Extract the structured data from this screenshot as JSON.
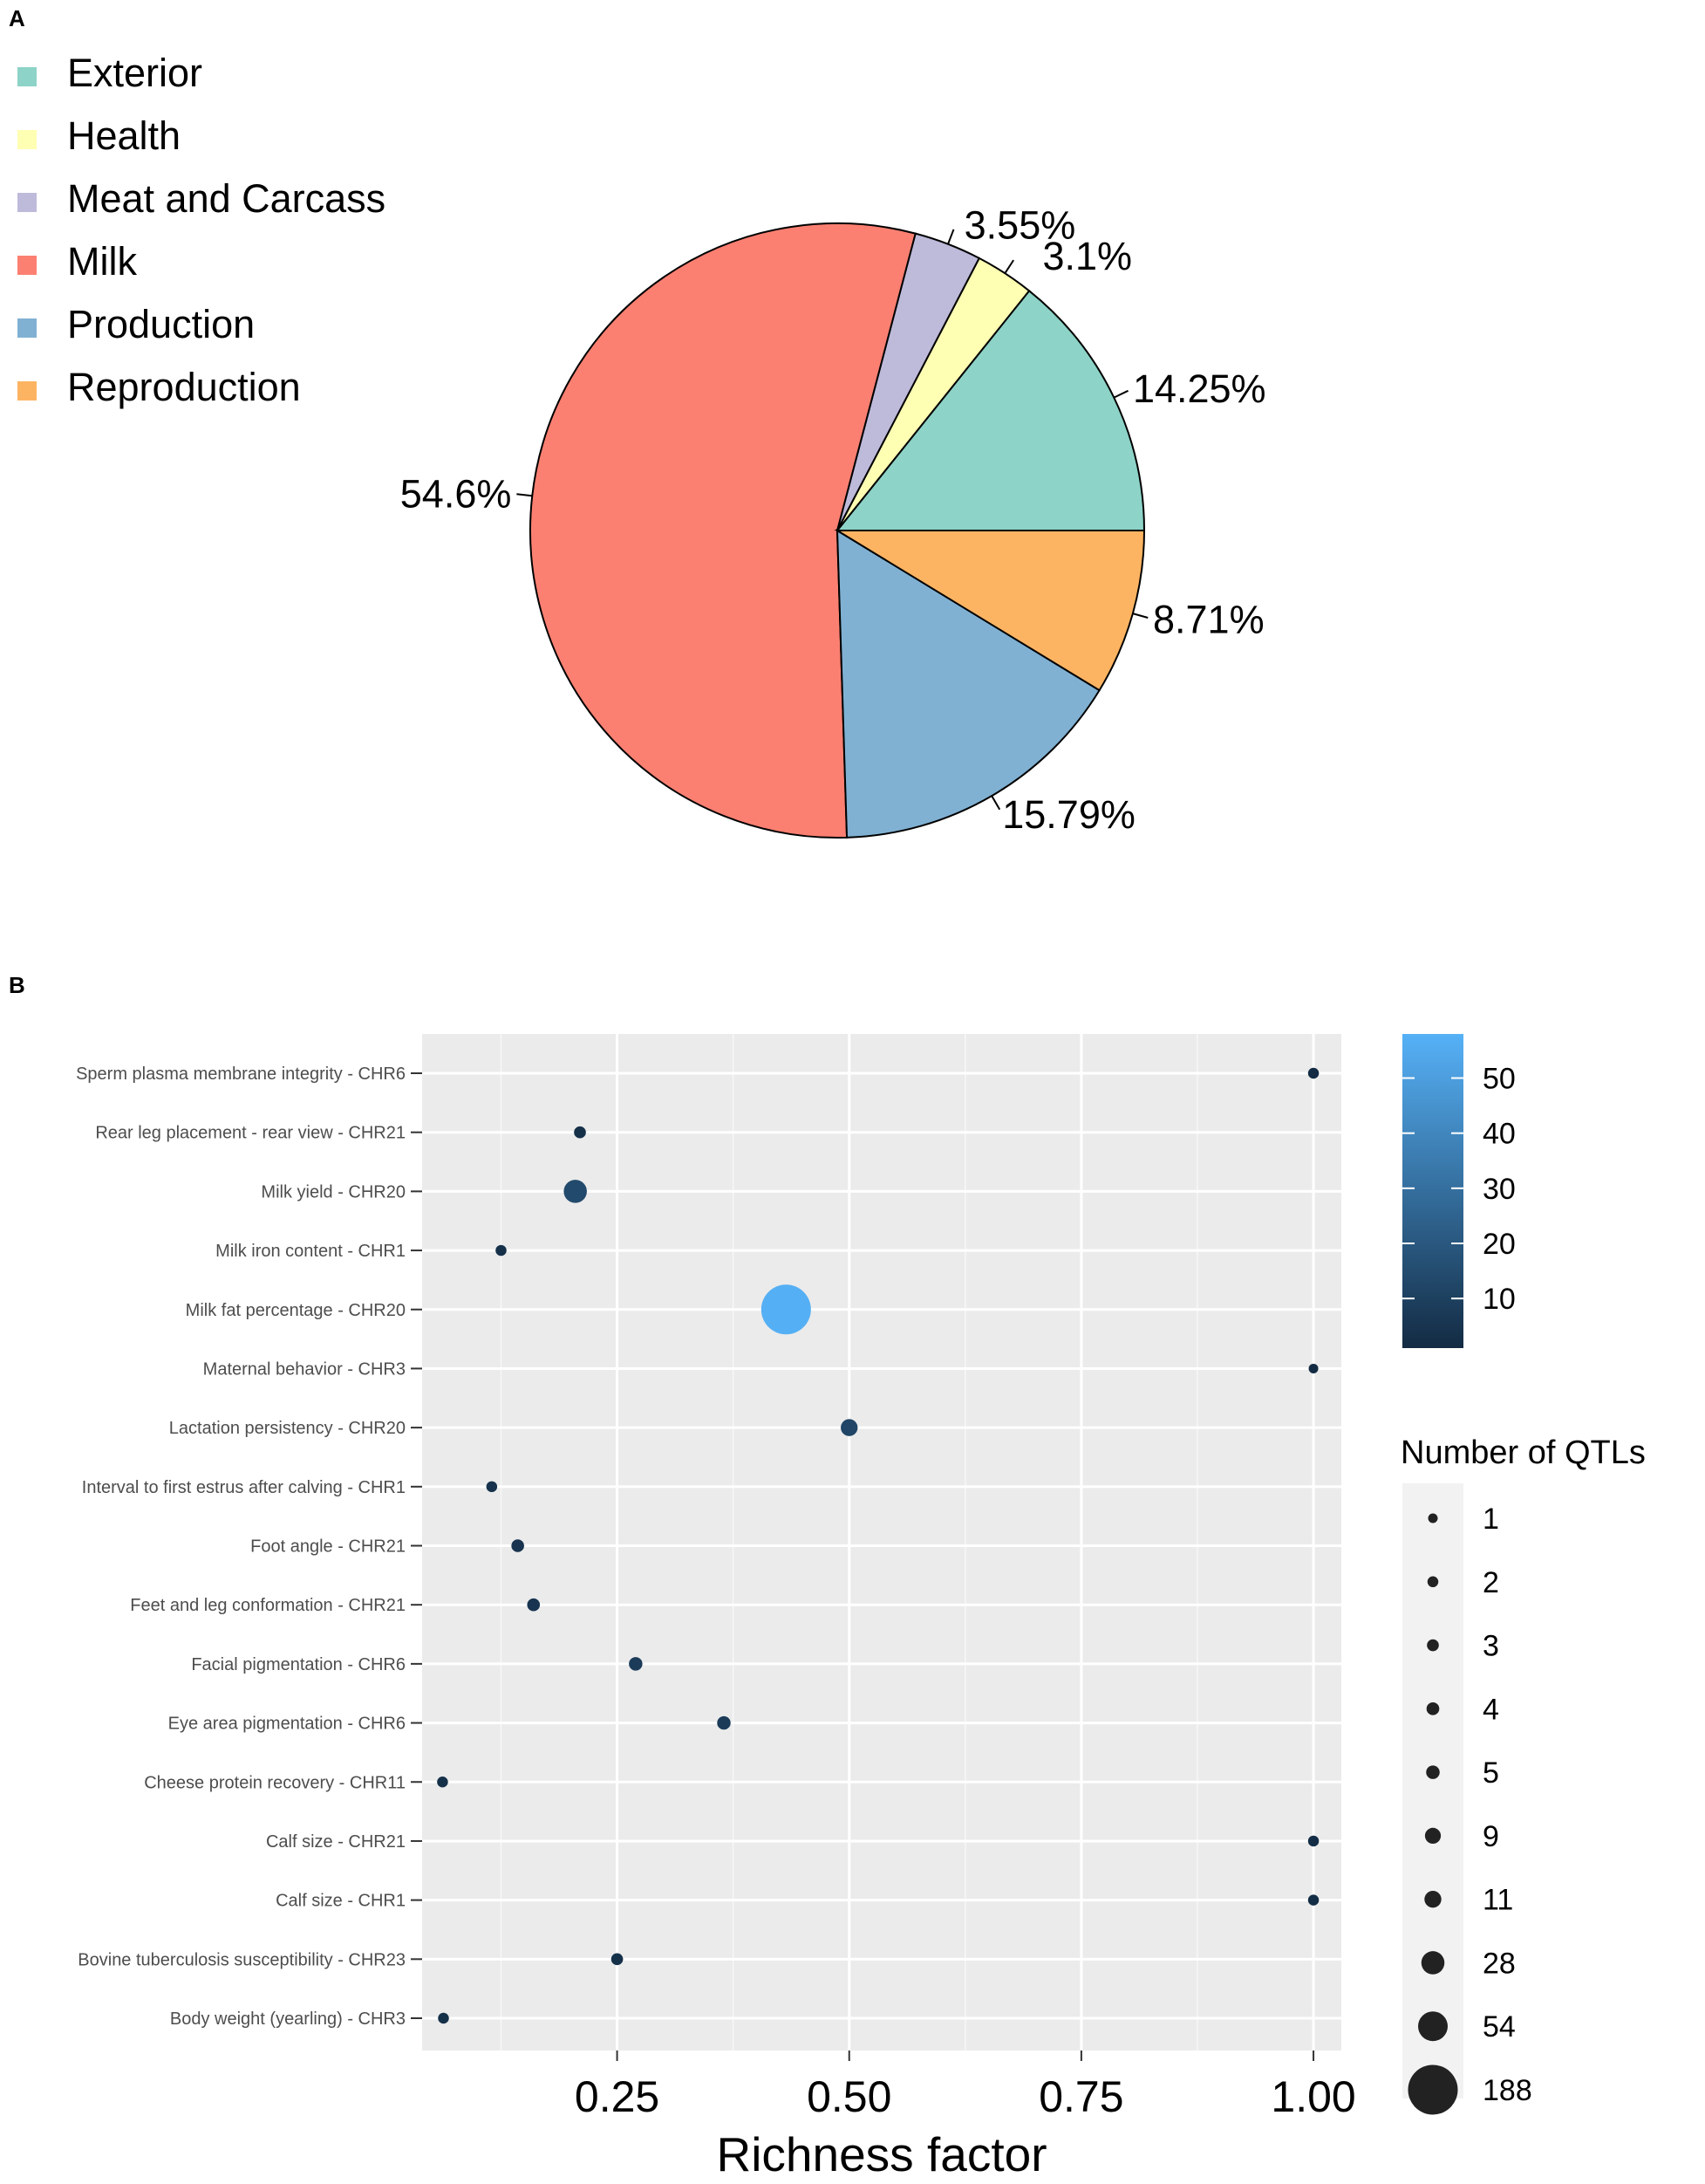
{
  "panel_labels": {
    "a": "A",
    "b": "B"
  },
  "chart_data": [
    {
      "type": "pie",
      "panel": "A",
      "legend_position": "top-left",
      "slices": [
        {
          "label": "Exterior",
          "value": 14.25,
          "pct_label": "14.25%",
          "color": "#8DD3C7"
        },
        {
          "label": "Health",
          "value": 3.1,
          "pct_label": "3.1%",
          "color": "#FFFFB3"
        },
        {
          "label": "Meat and Carcass",
          "value": 3.55,
          "pct_label": "3.55%",
          "color": "#BEBADA"
        },
        {
          "label": "Milk",
          "value": 54.6,
          "pct_label": "54.6%",
          "color": "#FB8072"
        },
        {
          "label": "Production",
          "value": 15.79,
          "pct_label": "15.79%",
          "color": "#80B1D3"
        },
        {
          "label": "Reproduction",
          "value": 8.71,
          "pct_label": "8.71%",
          "color": "#FDB462"
        }
      ]
    },
    {
      "type": "scatter",
      "panel": "B",
      "xlabel": "Richness factor",
      "ylabel": "",
      "xlim": [
        0.04,
        1.03
      ],
      "xticks": [
        0.25,
        0.5,
        0.75,
        1.0
      ],
      "xtick_labels": [
        "0.25",
        "0.50",
        "0.75",
        "1.00"
      ],
      "grid": true,
      "points": [
        {
          "label": "Sperm plasma membrane integrity - CHR6",
          "x": 1.0,
          "qtls": 2,
          "color_value": 1
        },
        {
          "label": "Rear leg placement - rear view - CHR21",
          "x": 0.21,
          "qtls": 3,
          "color_value": 3
        },
        {
          "label": "Milk yield - CHR20",
          "x": 0.205,
          "qtls": 28,
          "color_value": 14
        },
        {
          "label": "Milk iron content - CHR1",
          "x": 0.125,
          "qtls": 2,
          "color_value": 3
        },
        {
          "label": "Milk fat percentage - CHR20",
          "x": 0.432,
          "qtls": 188,
          "color_value": 57
        },
        {
          "label": "Maternal behavior - CHR3",
          "x": 1.0,
          "qtls": 1,
          "color_value": 1
        },
        {
          "label": "Lactation persistency - CHR20",
          "x": 0.5,
          "qtls": 11,
          "color_value": 12
        },
        {
          "label": "Interval to first estrus after calving - CHR1",
          "x": 0.115,
          "qtls": 2,
          "color_value": 4
        },
        {
          "label": "Foot angle - CHR21",
          "x": 0.143,
          "qtls": 4,
          "color_value": 5
        },
        {
          "label": "Feet and leg conformation - CHR21",
          "x": 0.16,
          "qtls": 4,
          "color_value": 5
        },
        {
          "label": "Facial pigmentation - CHR6",
          "x": 0.27,
          "qtls": 5,
          "color_value": 8
        },
        {
          "label": "Eye area pigmentation - CHR6",
          "x": 0.365,
          "qtls": 5,
          "color_value": 8
        },
        {
          "label": "Cheese protein recovery - CHR11",
          "x": 0.062,
          "qtls": 2,
          "color_value": 3
        },
        {
          "label": "Calf size - CHR21",
          "x": 1.0,
          "qtls": 2,
          "color_value": 2
        },
        {
          "label": "Calf size - CHR1",
          "x": 1.0,
          "qtls": 2,
          "color_value": 2
        },
        {
          "label": "Bovine tuberculosis susceptibility - CHR23",
          "x": 0.25,
          "qtls": 3,
          "color_value": 3
        },
        {
          "label": "Body weight (yearling) - CHR3",
          "x": 0.063,
          "qtls": 2,
          "color_value": 3
        }
      ],
      "color_legend": {
        "range": [
          1,
          58
        ],
        "ticks": [
          10,
          20,
          30,
          40,
          50
        ],
        "tick_labels": [
          "10",
          "20",
          "30",
          "40",
          "50"
        ],
        "low_color": "#132B43",
        "high_color": "#56B1F7"
      },
      "size_legend": {
        "title": "Number of QTLs",
        "values": [
          1,
          2,
          3,
          4,
          5,
          9,
          11,
          28,
          54,
          188
        ],
        "labels": [
          "1",
          "2",
          "3",
          "4",
          "5",
          "9",
          "11",
          "28",
          "54",
          "188"
        ]
      }
    }
  ]
}
